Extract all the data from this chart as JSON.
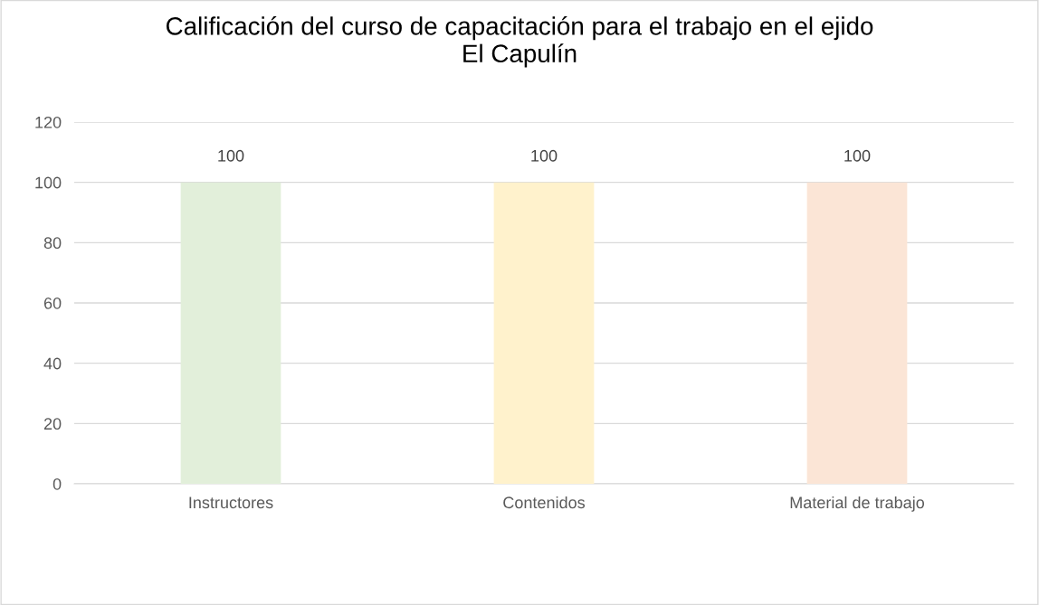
{
  "chart_data": {
    "type": "bar",
    "title": "Calificación del curso de capacitación para el trabajo en el ejido\nEl Capulín",
    "categories": [
      "Instructores",
      "Contenidos",
      "Material de trabajo"
    ],
    "values": [
      100,
      100,
      100
    ],
    "colors": [
      "#e2efda",
      "#fff2cc",
      "#fbe5d6"
    ],
    "ylim": [
      0,
      120
    ],
    "yticks": [
      0,
      20,
      40,
      60,
      80,
      100,
      120
    ],
    "grid": "y",
    "data_labels": true
  }
}
